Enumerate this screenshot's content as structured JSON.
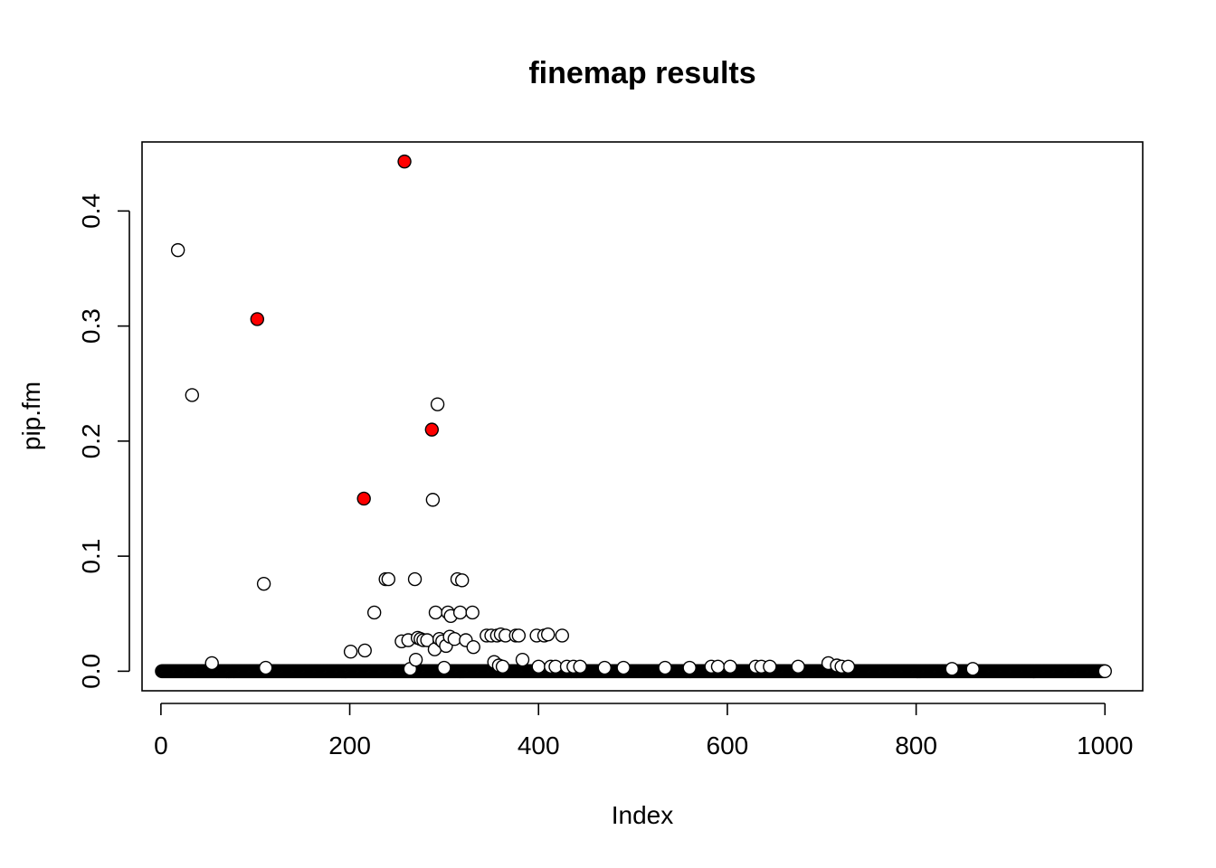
{
  "chart_data": {
    "type": "scatter",
    "title": "finemap results",
    "xlabel": "Index",
    "ylabel": "pip.fm",
    "xlim": [
      -20,
      1040
    ],
    "ylim": [
      -0.017,
      0.46
    ],
    "x_ticks": [
      0,
      200,
      400,
      600,
      800,
      1000
    ],
    "y_ticks": [
      0.0,
      0.1,
      0.2,
      0.3,
      0.4
    ],
    "y_tick_labels": [
      "0.0",
      "0.1",
      "0.2",
      "0.3",
      "0.4"
    ],
    "grid": false,
    "legend": "none",
    "colors": {
      "highlight": "#ff0000",
      "open": "#ffffff",
      "stroke": "#000000"
    },
    "baseline": {
      "from": 1,
      "to": 1000,
      "value": 0
    },
    "series": [
      {
        "fill": "open",
        "points": [
          [
            18,
            0.366
          ],
          [
            33,
            0.24
          ],
          [
            54,
            0.007
          ],
          [
            109,
            0.076
          ],
          [
            111,
            0.003
          ],
          [
            201,
            0.017
          ],
          [
            216,
            0.018
          ],
          [
            226,
            0.051
          ],
          [
            238,
            0.08
          ],
          [
            241,
            0.08
          ],
          [
            255,
            0.026
          ],
          [
            262,
            0.027
          ],
          [
            264,
            0.002
          ],
          [
            269,
            0.08
          ],
          [
            270,
            0.01
          ],
          [
            272,
            0.029
          ],
          [
            275,
            0.028
          ],
          [
            278,
            0.027
          ],
          [
            282,
            0.027
          ],
          [
            288,
            0.149
          ],
          [
            290,
            0.019
          ],
          [
            291,
            0.051
          ],
          [
            293,
            0.232
          ],
          [
            295,
            0.028
          ],
          [
            298,
            0.026
          ],
          [
            300,
            0.003
          ],
          [
            302,
            0.022
          ],
          [
            304,
            0.051
          ],
          [
            306,
            0.03
          ],
          [
            307,
            0.048
          ],
          [
            311,
            0.028
          ],
          [
            314,
            0.08
          ],
          [
            317,
            0.051
          ],
          [
            319,
            0.079
          ],
          [
            323,
            0.027
          ],
          [
            330,
            0.051
          ],
          [
            331,
            0.021
          ],
          [
            345,
            0.031
          ],
          [
            350,
            0.031
          ],
          [
            353,
            0.008
          ],
          [
            356,
            0.031
          ],
          [
            358,
            0.005
          ],
          [
            360,
            0.032
          ],
          [
            362,
            0.004
          ],
          [
            365,
            0.031
          ],
          [
            376,
            0.031
          ],
          [
            379,
            0.031
          ],
          [
            383,
            0.01
          ],
          [
            398,
            0.031
          ],
          [
            400,
            0.004
          ],
          [
            406,
            0.031
          ],
          [
            410,
            0.032
          ],
          [
            413,
            0.004
          ],
          [
            418,
            0.004
          ],
          [
            425,
            0.031
          ],
          [
            430,
            0.004
          ],
          [
            437,
            0.004
          ],
          [
            444,
            0.004
          ],
          [
            470,
            0.003
          ],
          [
            490,
            0.003
          ],
          [
            534,
            0.003
          ],
          [
            560,
            0.003
          ],
          [
            583,
            0.004
          ],
          [
            590,
            0.004
          ],
          [
            603,
            0.004
          ],
          [
            630,
            0.004
          ],
          [
            636,
            0.004
          ],
          [
            645,
            0.004
          ],
          [
            675,
            0.004
          ],
          [
            707,
            0.007
          ],
          [
            716,
            0.005
          ],
          [
            721,
            0.004
          ],
          [
            728,
            0.004
          ],
          [
            838,
            0.002
          ],
          [
            860,
            0.002
          ]
        ]
      },
      {
        "fill": "highlight",
        "points": [
          [
            102,
            0.306
          ],
          [
            215,
            0.15
          ],
          [
            258,
            0.443
          ],
          [
            287,
            0.21
          ]
        ]
      }
    ]
  }
}
